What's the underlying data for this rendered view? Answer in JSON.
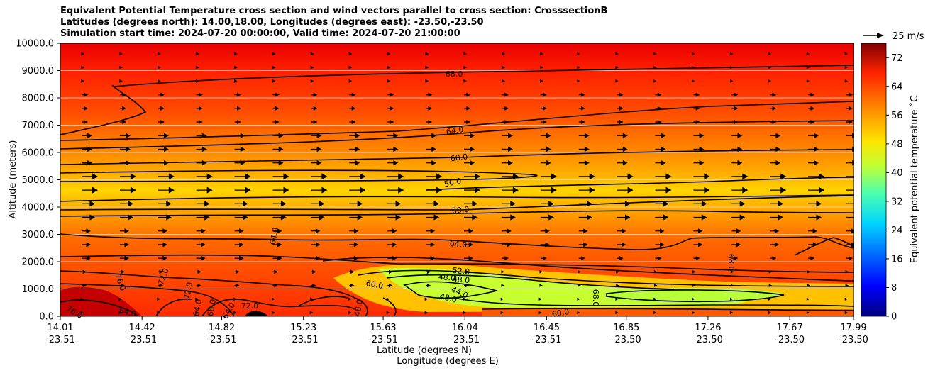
{
  "chart_data": {
    "type": "heatmap",
    "title_lines": [
      "Equivalent Potential Temperature cross section and wind vectors parallel to cross section: CrosssectionB",
      "Latitudes (degrees north): 14.00,18.00, Longitudes (degrees east): -23.50,-23.50",
      "Simulation start time: 2024-07-20 00:00:00, Valid time: 2024-07-20 21:00:00"
    ],
    "ylabel": "Altitude (meters)",
    "xlabel_lat": "Latitude (degrees N)",
    "xlabel_lon": "Longitude (degrees E)",
    "ylim": [
      0,
      10000
    ],
    "xlim": [
      14.01,
      17.99
    ],
    "y_ticks": [
      "0.0",
      "1000.0",
      "2000.0",
      "3000.0",
      "4000.0",
      "5000.0",
      "6000.0",
      "7000.0",
      "8000.0",
      "9000.0",
      "10000.0"
    ],
    "x_ticks": [
      {
        "lat": "14.01",
        "lon": "-23.51"
      },
      {
        "lat": "14.42",
        "lon": "-23.51"
      },
      {
        "lat": "14.82",
        "lon": "-23.51"
      },
      {
        "lat": "15.23",
        "lon": "-23.51"
      },
      {
        "lat": "15.63",
        "lon": "-23.51"
      },
      {
        "lat": "16.04",
        "lon": "-23.51"
      },
      {
        "lat": "16.45",
        "lon": "-23.51"
      },
      {
        "lat": "16.85",
        "lon": "-23.50"
      },
      {
        "lat": "17.26",
        "lon": "-23.50"
      },
      {
        "lat": "17.67",
        "lon": "-23.50"
      },
      {
        "lat": "17.99",
        "lon": "-23.50"
      }
    ],
    "colorbar": {
      "label": "Equivalent potential temperature $^\\circ$C",
      "label_display": "Equivalent potential temperature ˚C",
      "range": [
        0,
        76
      ],
      "ticks": [
        "0",
        "8",
        "16",
        "24",
        "32",
        "40",
        "48",
        "56",
        "64",
        "72"
      ]
    },
    "wind_key": "25 m/s",
    "contour_labels": [
      "68.0",
      "64.0",
      "60.0",
      "56.0",
      "60.0",
      "64.0",
      "52.0",
      "48.0",
      "48.0",
      "48.0",
      "44.0",
      "60.0",
      "64.0",
      "68.0",
      "72.0",
      "72.0",
      "68.0",
      "48.0",
      "64.0",
      "68.0",
      "72.0",
      "76.0",
      "76.0",
      "60.0",
      "64.0",
      "64.0"
    ],
    "grid": true
  }
}
